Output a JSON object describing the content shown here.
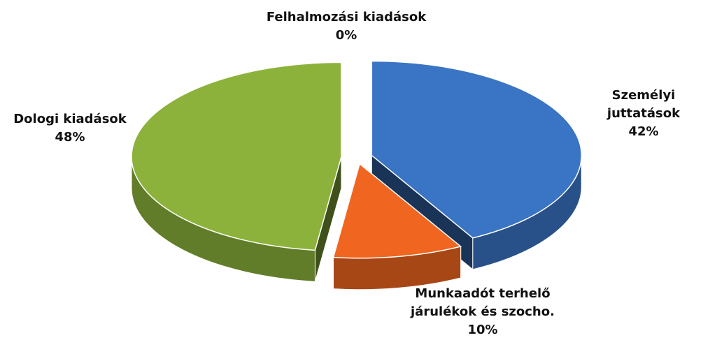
{
  "chart_data": {
    "type": "pie",
    "categories": [
      "Személyi juttatások",
      "Munkaadót terhelő járulékok és szocho.",
      "Dologi kiadások",
      "Felhalmozási kiadások"
    ],
    "values": [
      42,
      10,
      48,
      0
    ],
    "value_labels": [
      "42%",
      "10%",
      "48%",
      "0%"
    ],
    "colors": [
      "#3a74c4",
      "#f0651f",
      "#8cb23b",
      "#f5c21a"
    ]
  }
}
